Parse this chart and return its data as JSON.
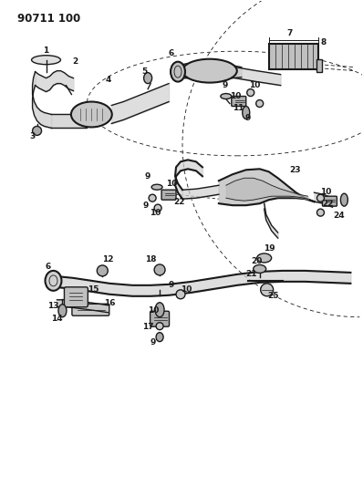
{
  "title": "90711 100",
  "bg_color": "#ffffff",
  "line_color": "#1a1a1a",
  "title_fontsize": 8.5,
  "label_fontsize": 6.5,
  "fig_width": 3.98,
  "fig_height": 5.33,
  "dpi": 100
}
